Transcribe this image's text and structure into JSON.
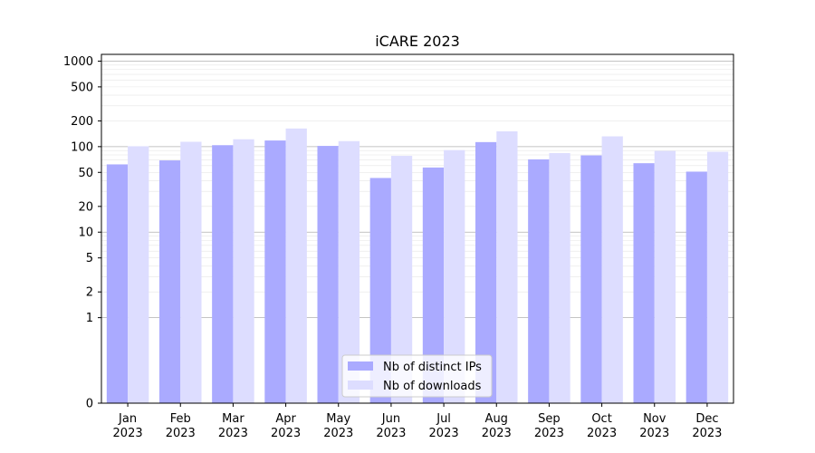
{
  "chart_data": {
    "type": "bar",
    "title": "iCARE 2023",
    "xlabel": "",
    "ylabel": "",
    "yscale": "symlog",
    "ylim": [
      0,
      1200
    ],
    "yticks": [
      0,
      1,
      2,
      5,
      10,
      20,
      50,
      100,
      200,
      500,
      1000
    ],
    "ytick_labels": [
      "0",
      "1",
      "2",
      "5",
      "10",
      "20",
      "50",
      "100",
      "200",
      "500",
      "1000"
    ],
    "grid": true,
    "legend_position": "lower-center",
    "categories": [
      [
        "Jan",
        "2023"
      ],
      [
        "Feb",
        "2023"
      ],
      [
        "Mar",
        "2023"
      ],
      [
        "Apr",
        "2023"
      ],
      [
        "May",
        "2023"
      ],
      [
        "Jun",
        "2023"
      ],
      [
        "Jul",
        "2023"
      ],
      [
        "Aug",
        "2023"
      ],
      [
        "Sep",
        "2023"
      ],
      [
        "Oct",
        "2023"
      ],
      [
        "Nov",
        "2023"
      ],
      [
        "Dec",
        "2023"
      ]
    ],
    "series": [
      {
        "name": "Nb of distinct IPs",
        "color": "#aaaaff",
        "values": [
          62,
          69,
          104,
          118,
          102,
          43,
          57,
          113,
          71,
          79,
          64,
          51
        ]
      },
      {
        "name": "Nb of downloads",
        "color": "#ddddff",
        "values": [
          101,
          114,
          122,
          163,
          116,
          78,
          91,
          151,
          84,
          132,
          89,
          87
        ]
      }
    ]
  }
}
